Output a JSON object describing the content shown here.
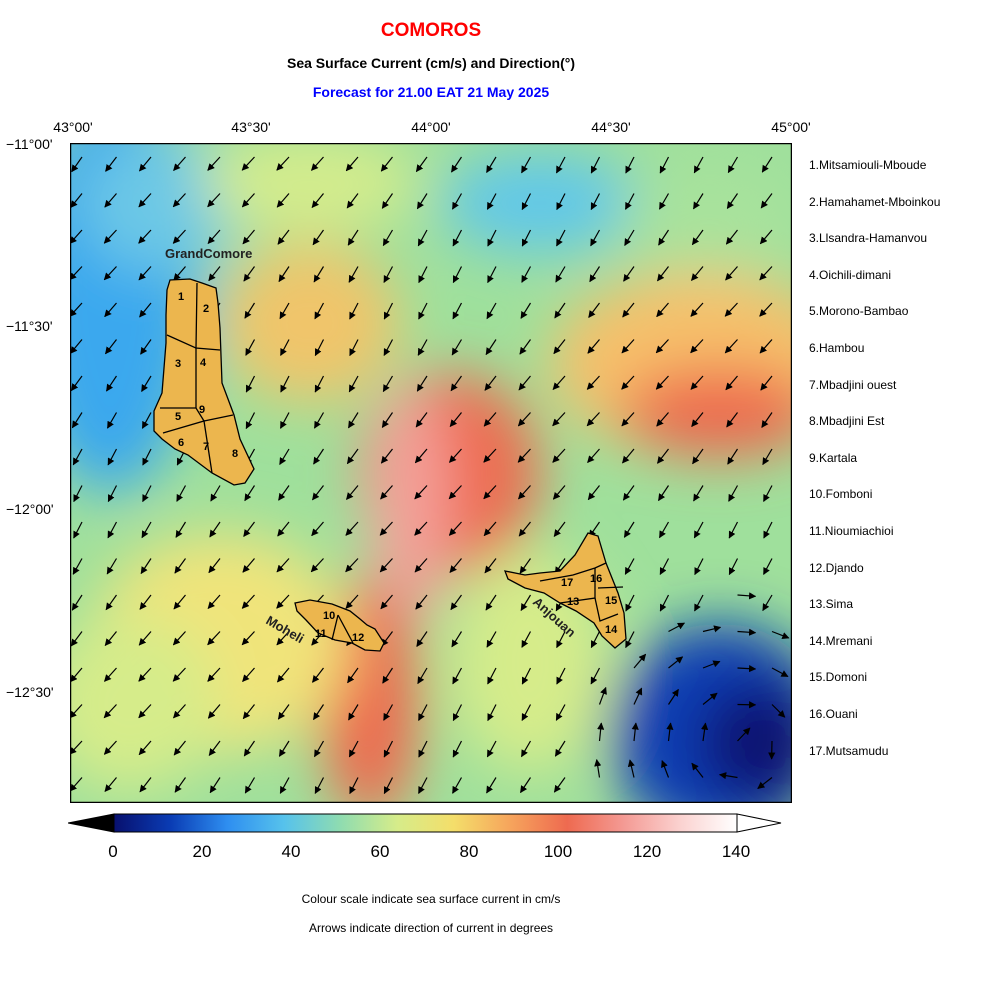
{
  "title": "COMOROS",
  "subtitle": "Sea Surface Current (cm/s) and Direction(°)",
  "forecast": "Forecast for  21.00 EAT 21 May 2025",
  "lon_labels": [
    "43°00'",
    "43°30'",
    "44°00'",
    "44°30'",
    "45°00'"
  ],
  "lat_labels": [
    "−11°00'",
    "−11°30'",
    "−12°00'",
    "−12°30'"
  ],
  "island_labels": {
    "grande": "GrandComore",
    "moheli": "Moheli",
    "anjouan": "Anjouan"
  },
  "regions": [
    "1.Mitsamiouli-Mboude",
    "2.Hamahamet-Mboinkou",
    "3.Llsandra-Hamanvou",
    "4.Oichili-dimani",
    "5.Morono-Bambao",
    "6.Hambou",
    "7.Mbadjini ouest",
    "8.Mbadjini Est",
    "9.Kartala",
    "10.Fomboni",
    "11.Nioumiachioi",
    "12.Djando",
    "13.Sima",
    "14.Mremani",
    "15.Domoni",
    "16.Ouani",
    "17.Mutsamudu"
  ],
  "colorbar": {
    "ticks": [
      "0",
      "20",
      "40",
      "60",
      "80",
      "100",
      "120",
      "140"
    ],
    "colors": [
      "#08106e",
      "#0a3cb4",
      "#2e8ef0",
      "#56c2ec",
      "#8fdcb0",
      "#d6ec8a",
      "#f4de6a",
      "#f6a45c",
      "#ee6a50",
      "#f49a94",
      "#fbd2d0",
      "#ffffff"
    ]
  },
  "notes": [
    "Colour scale indicate sea surface current in cm/s",
    "Arrows indicate direction of current in degrees"
  ],
  "colors": {
    "land": "#ecb64e",
    "title": "#ff0000",
    "forecast": "#0000ff"
  }
}
